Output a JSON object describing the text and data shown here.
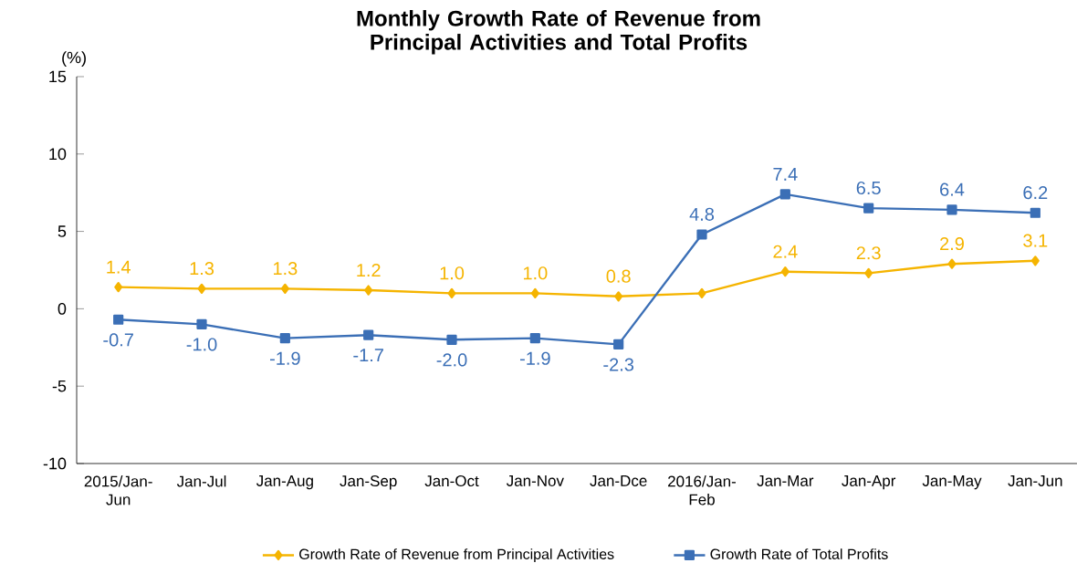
{
  "chart_data": {
    "type": "line",
    "title": "Monthly Growth Rate of Revenue from Principal Activities  and Total Profits",
    "ylabel": "(%)",
    "categories": [
      "2015/Jan-Jun",
      "Jan-Jul",
      "Jan-Aug",
      "Jan-Sep",
      "Jan-Oct",
      "Jan-Nov",
      "Jan-Dce",
      "2016/Jan-Feb",
      "Jan-Mar",
      "Jan-Apr",
      "Jan-May",
      "Jan-Jun"
    ],
    "series": [
      {
        "name": "Growth Rate of Revenue from Principal Activities",
        "color": "#f5b400",
        "marker": "diamond",
        "values": [
          1.4,
          1.3,
          1.3,
          1.2,
          1.0,
          1.0,
          0.8,
          1.0,
          2.4,
          2.3,
          2.9,
          3.1
        ],
        "value_labels": [
          "1.4",
          "1.3",
          "1.3",
          "1.2",
          "1.0",
          "1.0",
          "0.8",
          null,
          "2.4",
          "2.3",
          "2.9",
          "3.1"
        ]
      },
      {
        "name": "Growth Rate of Total Profits",
        "color": "#3b6fb6",
        "marker": "square",
        "values": [
          -0.7,
          -1.0,
          -1.9,
          -1.7,
          -2.0,
          -1.9,
          -2.3,
          4.8,
          7.4,
          6.5,
          6.4,
          6.2
        ],
        "value_labels": [
          "-0.7",
          "-1.0",
          "-1.9",
          "-1.7",
          "-2.0",
          "-1.9",
          "-2.3",
          "4.8",
          "7.4",
          "6.5",
          "6.4",
          "6.2"
        ]
      }
    ],
    "ylim": [
      -10,
      15
    ],
    "yticks": [
      -10,
      -5,
      0,
      5,
      10,
      15
    ],
    "grid": false,
    "legend": "bottom",
    "line_style": "solid"
  }
}
